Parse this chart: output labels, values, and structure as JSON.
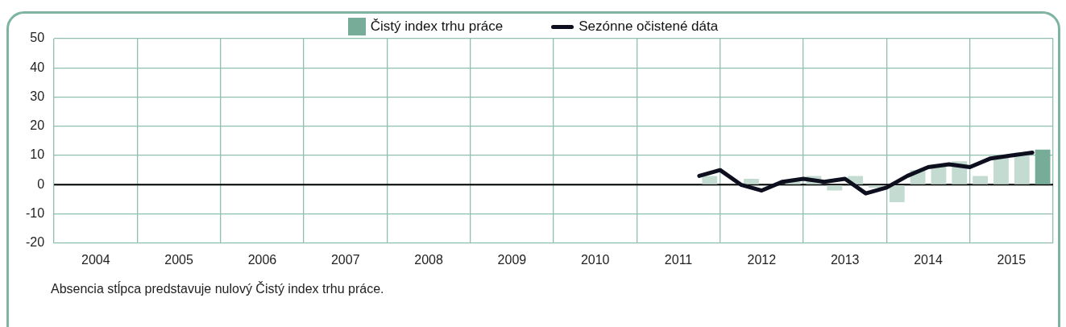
{
  "chart_data": {
    "type": "bar",
    "series": [
      {
        "name": "Čistý index trhu práce",
        "type": "bar",
        "color": "#77ad98",
        "x": [
          2011.875,
          2012.125,
          2012.375,
          2012.625,
          2012.875,
          2013.125,
          2013.375,
          2013.625,
          2013.875,
          2014.125,
          2014.375,
          2014.625,
          2014.875,
          2015.125,
          2015.375,
          2015.625,
          2015.875
        ],
        "colors": [
          "#c3dbd0",
          "#c3dbd0",
          "#c3dbd0",
          "#c3dbd0",
          "#c3dbd0",
          "#c3dbd0",
          "#c3dbd0",
          "#c3dbd0",
          "#c3dbd0",
          "#c3dbd0",
          "#c3dbd0",
          "#c3dbd0",
          "#c3dbd0",
          "#c3dbd0",
          "#c3dbd0",
          "#c3dbd0",
          "#77ad98"
        ],
        "values": [
          3,
          0,
          2,
          null,
          1,
          3,
          -2,
          3,
          -1,
          -6,
          5,
          7,
          8,
          3,
          10,
          11,
          12
        ]
      },
      {
        "name": "Sezónne očistené dáta",
        "type": "line",
        "color": "#0d0f1e",
        "x": [
          2011.75,
          2012,
          2012.25,
          2012.5,
          2012.75,
          2013,
          2013.25,
          2013.5,
          2013.75,
          2014,
          2014.25,
          2014.5,
          2014.75,
          2015,
          2015.25,
          2015.5,
          2015.75
        ],
        "values": [
          3,
          5,
          0,
          -2,
          1,
          2,
          1,
          2,
          -3,
          -1,
          3,
          6,
          7,
          6,
          9,
          10,
          11
        ]
      }
    ],
    "xlim": [
      2004,
      2016
    ],
    "xticks": [
      {
        "value": 2004,
        "label": null
      },
      {
        "value": 2004.5,
        "label": "2004"
      },
      {
        "value": 2005,
        "label": null
      },
      {
        "value": 2005.5,
        "label": "2005"
      },
      {
        "value": 2006,
        "label": null
      },
      {
        "value": 2006.5,
        "label": "2006"
      },
      {
        "value": 2007,
        "label": null
      },
      {
        "value": 2007.5,
        "label": "2007"
      },
      {
        "value": 2008,
        "label": null
      },
      {
        "value": 2008.5,
        "label": "2008"
      },
      {
        "value": 2009,
        "label": null
      },
      {
        "value": 2009.5,
        "label": "2009"
      },
      {
        "value": 2010,
        "label": null
      },
      {
        "value": 2010.5,
        "label": "2010"
      },
      {
        "value": 2011,
        "label": null
      },
      {
        "value": 2011.5,
        "label": "2011"
      },
      {
        "value": 2012,
        "label": null
      },
      {
        "value": 2012.5,
        "label": "2012"
      },
      {
        "value": 2013,
        "label": null
      },
      {
        "value": 2013.5,
        "label": "2013"
      },
      {
        "value": 2014,
        "label": null
      },
      {
        "value": 2014.5,
        "label": "2014"
      },
      {
        "value": 2015,
        "label": null
      },
      {
        "value": 2015.5,
        "label": "2015"
      },
      {
        "value": 2016,
        "label": null
      }
    ],
    "ylim": [
      -20,
      50
    ],
    "yticks": [
      -20,
      -10,
      0,
      10,
      20,
      30,
      40,
      50
    ],
    "grid": true,
    "legend": "top",
    "ref_lines": [
      {
        "axis": "y",
        "value": 0,
        "color": "#000000"
      }
    ],
    "annotations": [
      "Absencia stĺpca predstavuje nulový Čistý index trhu práce."
    ]
  }
}
